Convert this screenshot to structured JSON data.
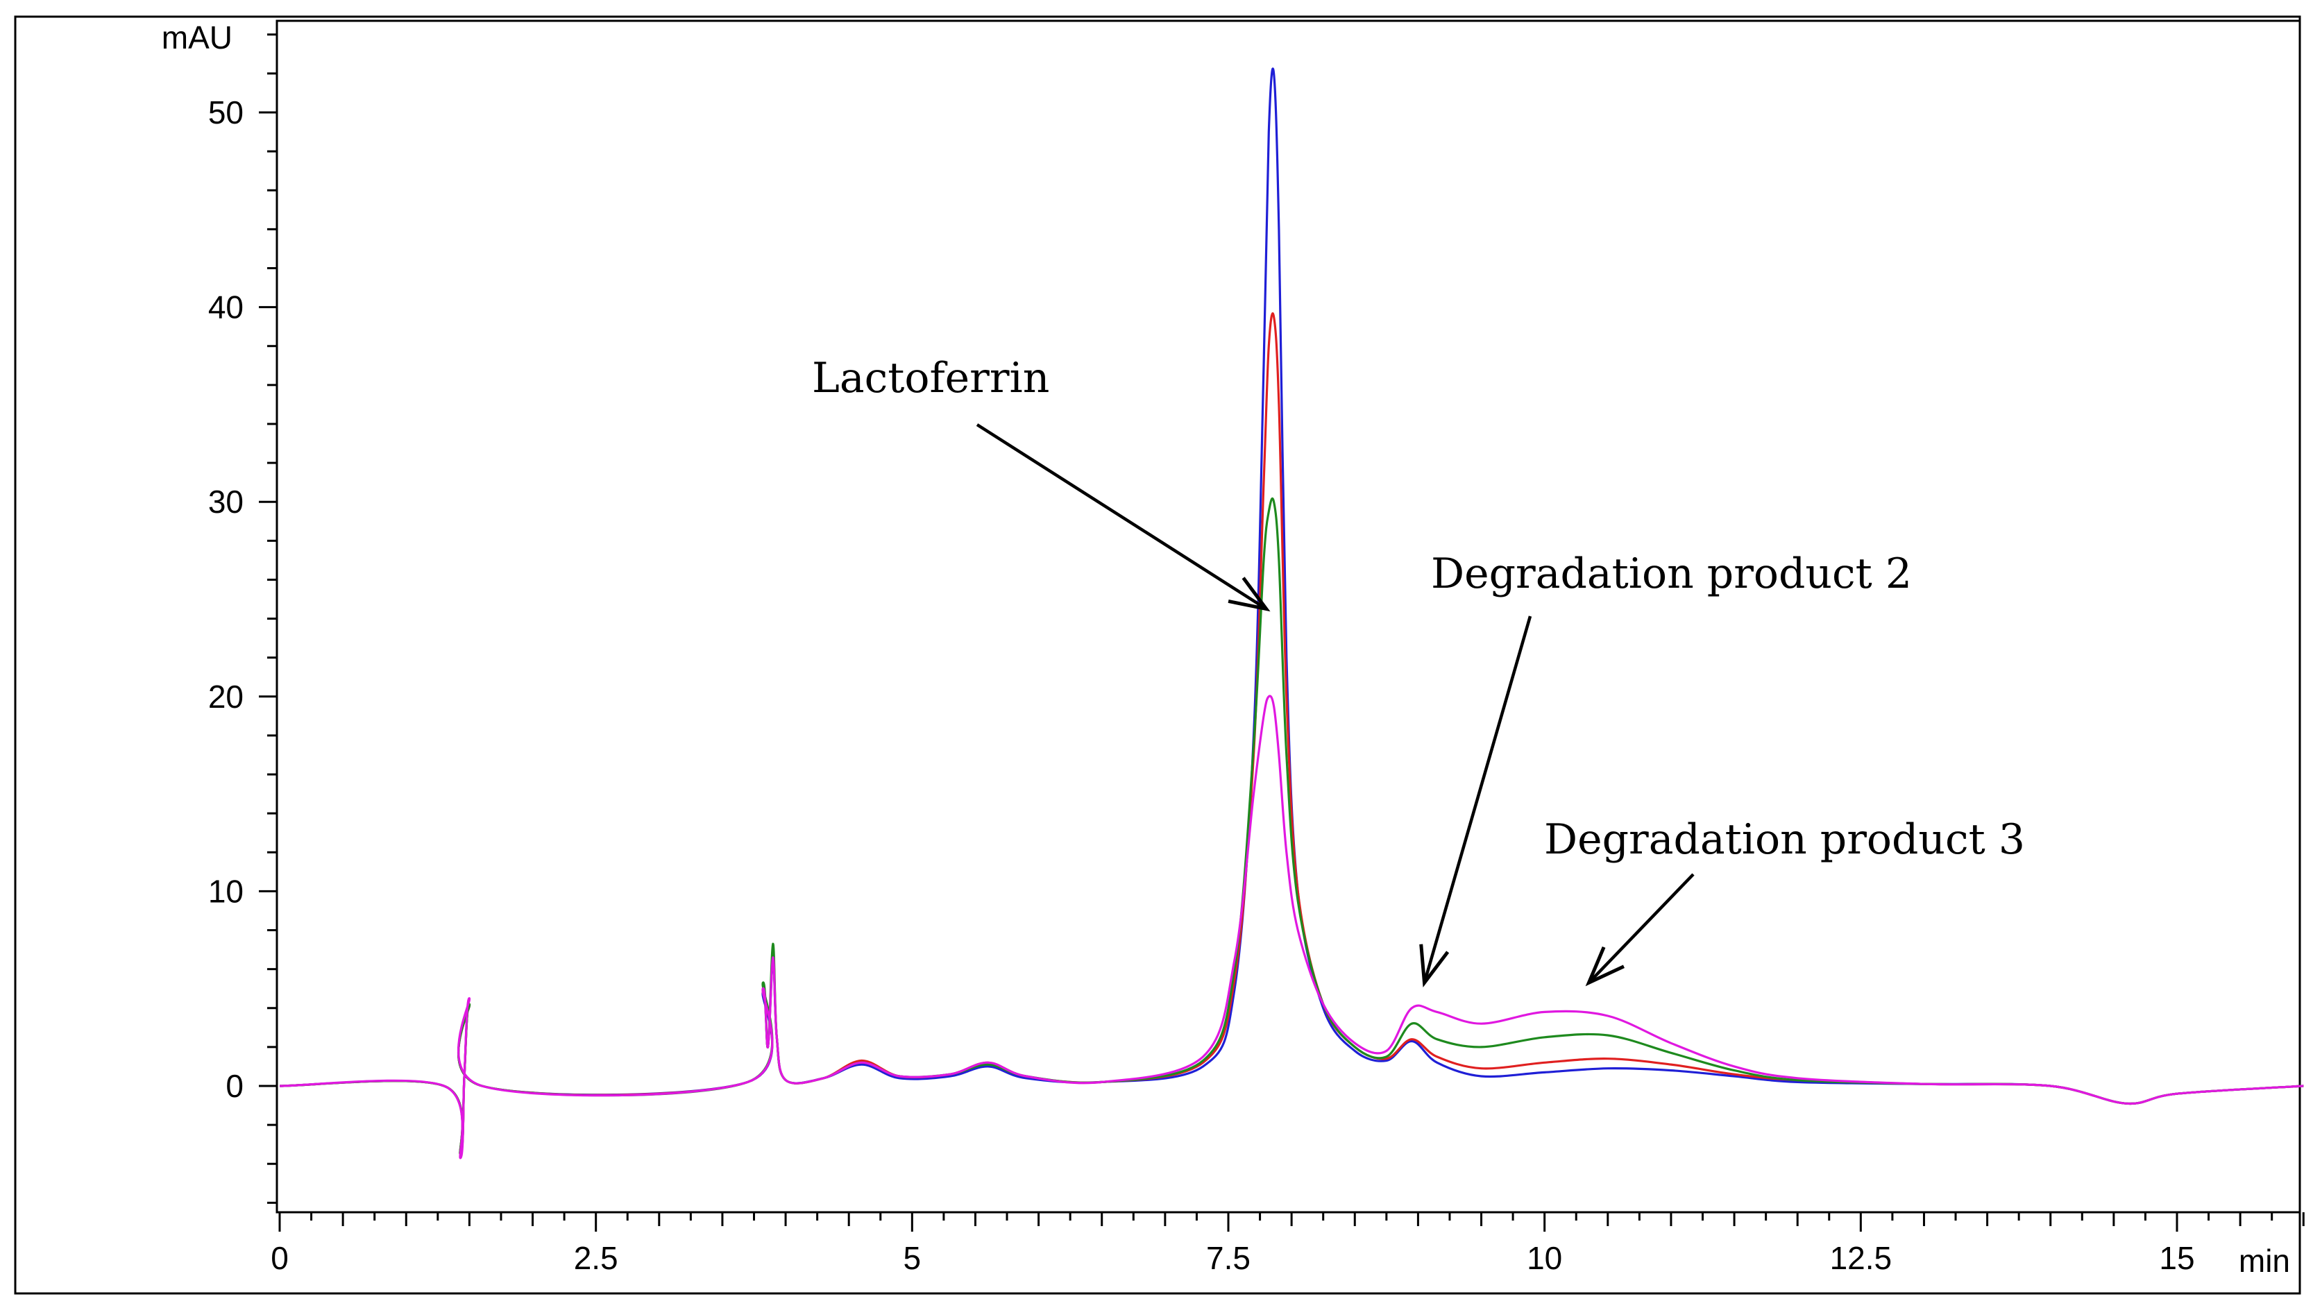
{
  "chart_data": {
    "type": "line",
    "title": "",
    "xlabel": "min",
    "ylabel": "mAU",
    "xlim": [
      0,
      16
    ],
    "ylim": [
      -6.5,
      54.5
    ],
    "x_ticks": [
      0,
      2.5,
      5,
      7.5,
      10,
      12.5,
      15
    ],
    "x_tick_labels": [
      "0",
      "2.5",
      "5",
      "7.5",
      "10",
      "12.5",
      "15"
    ],
    "y_ticks": [
      0,
      10,
      20,
      30,
      40,
      50
    ],
    "y_tick_labels": [
      "0",
      "10",
      "20",
      "30",
      "40",
      "50"
    ],
    "grid": false,
    "series": [
      {
        "name": "Sample 1",
        "color": "#1f1fd6",
        "x": [
          0,
          1.3,
          1.43,
          1.46,
          1.5,
          1.6,
          3.7,
          3.82,
          3.86,
          3.9,
          3.93,
          4.0,
          4.3,
          4.6,
          4.9,
          5.3,
          5.6,
          5.9,
          6.5,
          7.3,
          7.55,
          7.7,
          7.78,
          7.82,
          7.86,
          7.9,
          7.96,
          8.05,
          8.25,
          8.5,
          8.75,
          8.95,
          9.15,
          9.5,
          10.0,
          10.5,
          11.0,
          11.5,
          12.0,
          13.0,
          14.0,
          14.6,
          15.0,
          16.0
        ],
        "y": [
          0,
          0,
          -3.5,
          0.5,
          4.2,
          0,
          0.2,
          4.8,
          2.0,
          6.5,
          2.5,
          0.3,
          0.4,
          1.1,
          0.4,
          0.5,
          1.0,
          0.4,
          0.2,
          1.0,
          5.0,
          18.0,
          37.0,
          49.0,
          52.0,
          44.0,
          22.0,
          10.0,
          4.0,
          1.8,
          1.3,
          2.3,
          1.2,
          0.5,
          0.7,
          0.9,
          0.8,
          0.5,
          0.2,
          0.1,
          0.0,
          -0.9,
          -0.4,
          0.0
        ]
      },
      {
        "name": "Sample 2",
        "color": "#e02020",
        "x": [
          0,
          1.3,
          1.43,
          1.46,
          1.5,
          1.6,
          3.7,
          3.82,
          3.86,
          3.9,
          3.93,
          4.0,
          4.3,
          4.6,
          4.9,
          5.3,
          5.6,
          5.9,
          6.5,
          7.3,
          7.55,
          7.7,
          7.78,
          7.82,
          7.86,
          7.9,
          7.96,
          8.05,
          8.25,
          8.5,
          8.75,
          8.95,
          9.15,
          9.5,
          10.0,
          10.5,
          11.0,
          11.5,
          12.0,
          13.0,
          14.0,
          14.6,
          15.0,
          16.0
        ],
        "y": [
          0,
          0,
          -3.5,
          0.5,
          4.2,
          0,
          0.2,
          5.0,
          2.0,
          6.8,
          2.5,
          0.3,
          0.4,
          1.3,
          0.5,
          0.6,
          1.2,
          0.5,
          0.2,
          1.2,
          5.5,
          17.0,
          31.0,
          38.0,
          39.5,
          35.0,
          20.0,
          10.0,
          4.2,
          2.0,
          1.4,
          2.4,
          1.5,
          0.9,
          1.2,
          1.4,
          1.1,
          0.6,
          0.3,
          0.1,
          0.0,
          -0.9,
          -0.4,
          0.0
        ]
      },
      {
        "name": "Sample 3",
        "color": "#1e8a1e",
        "x": [
          0,
          1.3,
          1.43,
          1.46,
          1.5,
          1.6,
          3.7,
          3.82,
          3.86,
          3.9,
          3.93,
          4.0,
          4.3,
          4.6,
          4.9,
          5.3,
          5.6,
          5.9,
          6.5,
          7.3,
          7.55,
          7.7,
          7.78,
          7.82,
          7.86,
          7.9,
          7.96,
          8.05,
          8.25,
          8.5,
          8.75,
          8.95,
          9.15,
          9.5,
          10.0,
          10.5,
          11.0,
          11.5,
          12.0,
          13.0,
          14.0,
          14.6,
          15.0,
          16.0
        ],
        "y": [
          0,
          0,
          -3.5,
          0.5,
          4.2,
          0,
          0.2,
          5.3,
          2.0,
          7.3,
          2.5,
          0.3,
          0.4,
          1.2,
          0.5,
          0.6,
          1.1,
          0.5,
          0.2,
          1.3,
          6.0,
          17.5,
          27.0,
          29.5,
          30.0,
          27.0,
          17.0,
          9.5,
          4.2,
          2.0,
          1.5,
          3.2,
          2.4,
          2.0,
          2.5,
          2.6,
          1.7,
          0.8,
          0.3,
          0.1,
          0.0,
          -0.9,
          -0.4,
          0.0
        ]
      },
      {
        "name": "Sample 4",
        "color": "#e018e0",
        "x": [
          0,
          1.3,
          1.43,
          1.46,
          1.5,
          1.6,
          3.7,
          3.82,
          3.86,
          3.9,
          3.93,
          4.0,
          4.3,
          4.6,
          4.9,
          5.3,
          5.6,
          5.9,
          6.5,
          7.3,
          7.55,
          7.7,
          7.78,
          7.82,
          7.86,
          7.9,
          7.96,
          8.05,
          8.25,
          8.5,
          8.75,
          8.95,
          9.15,
          9.5,
          10.0,
          10.5,
          11.0,
          11.5,
          12.0,
          13.0,
          14.0,
          14.6,
          15.0,
          16.0
        ],
        "y": [
          0,
          0,
          -3.7,
          0.5,
          4.5,
          0,
          0.2,
          5.0,
          2.0,
          6.6,
          2.5,
          0.3,
          0.4,
          1.2,
          0.5,
          0.6,
          1.2,
          0.5,
          0.2,
          1.5,
          6.5,
          15.0,
          19.0,
          20.0,
          19.5,
          17.0,
          12.0,
          8.0,
          4.2,
          2.2,
          1.8,
          4.0,
          3.8,
          3.2,
          3.8,
          3.6,
          2.2,
          1.0,
          0.4,
          0.1,
          0.0,
          -0.9,
          -0.4,
          0.0
        ]
      }
    ],
    "annotations": [
      {
        "text": "Lactoferrin",
        "arrow_target": [
          7.8,
          24.5
        ]
      },
      {
        "text": "Degradation product 2",
        "arrow_target": [
          9.05,
          5.3
        ]
      },
      {
        "text": "Degradation product 3",
        "arrow_target": [
          10.35,
          5.3
        ]
      }
    ]
  }
}
